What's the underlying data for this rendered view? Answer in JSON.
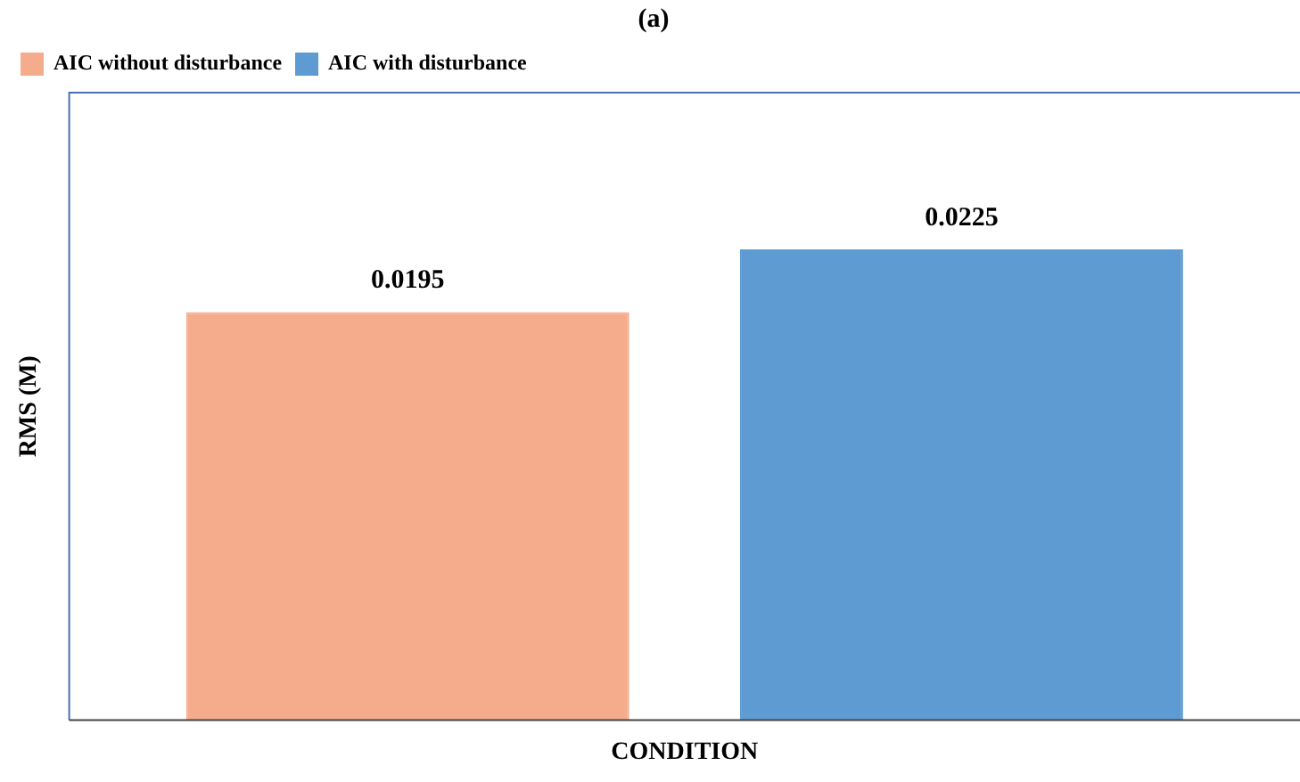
{
  "chart_data": {
    "type": "bar",
    "title": "(a)",
    "xlabel": "CONDITION",
    "ylabel": "RMS (M)",
    "categories": [
      null
    ],
    "series": [
      {
        "name": "AIC without disturbance",
        "color": "#f5ac8c",
        "values": [
          0.0195
        ]
      },
      {
        "name": "AIC with disturbance",
        "color": "#5f9bd3",
        "values": [
          0.0225
        ]
      }
    ],
    "data_labels": true,
    "legend": "top left",
    "grid": false,
    "tick_labels": false
  }
}
